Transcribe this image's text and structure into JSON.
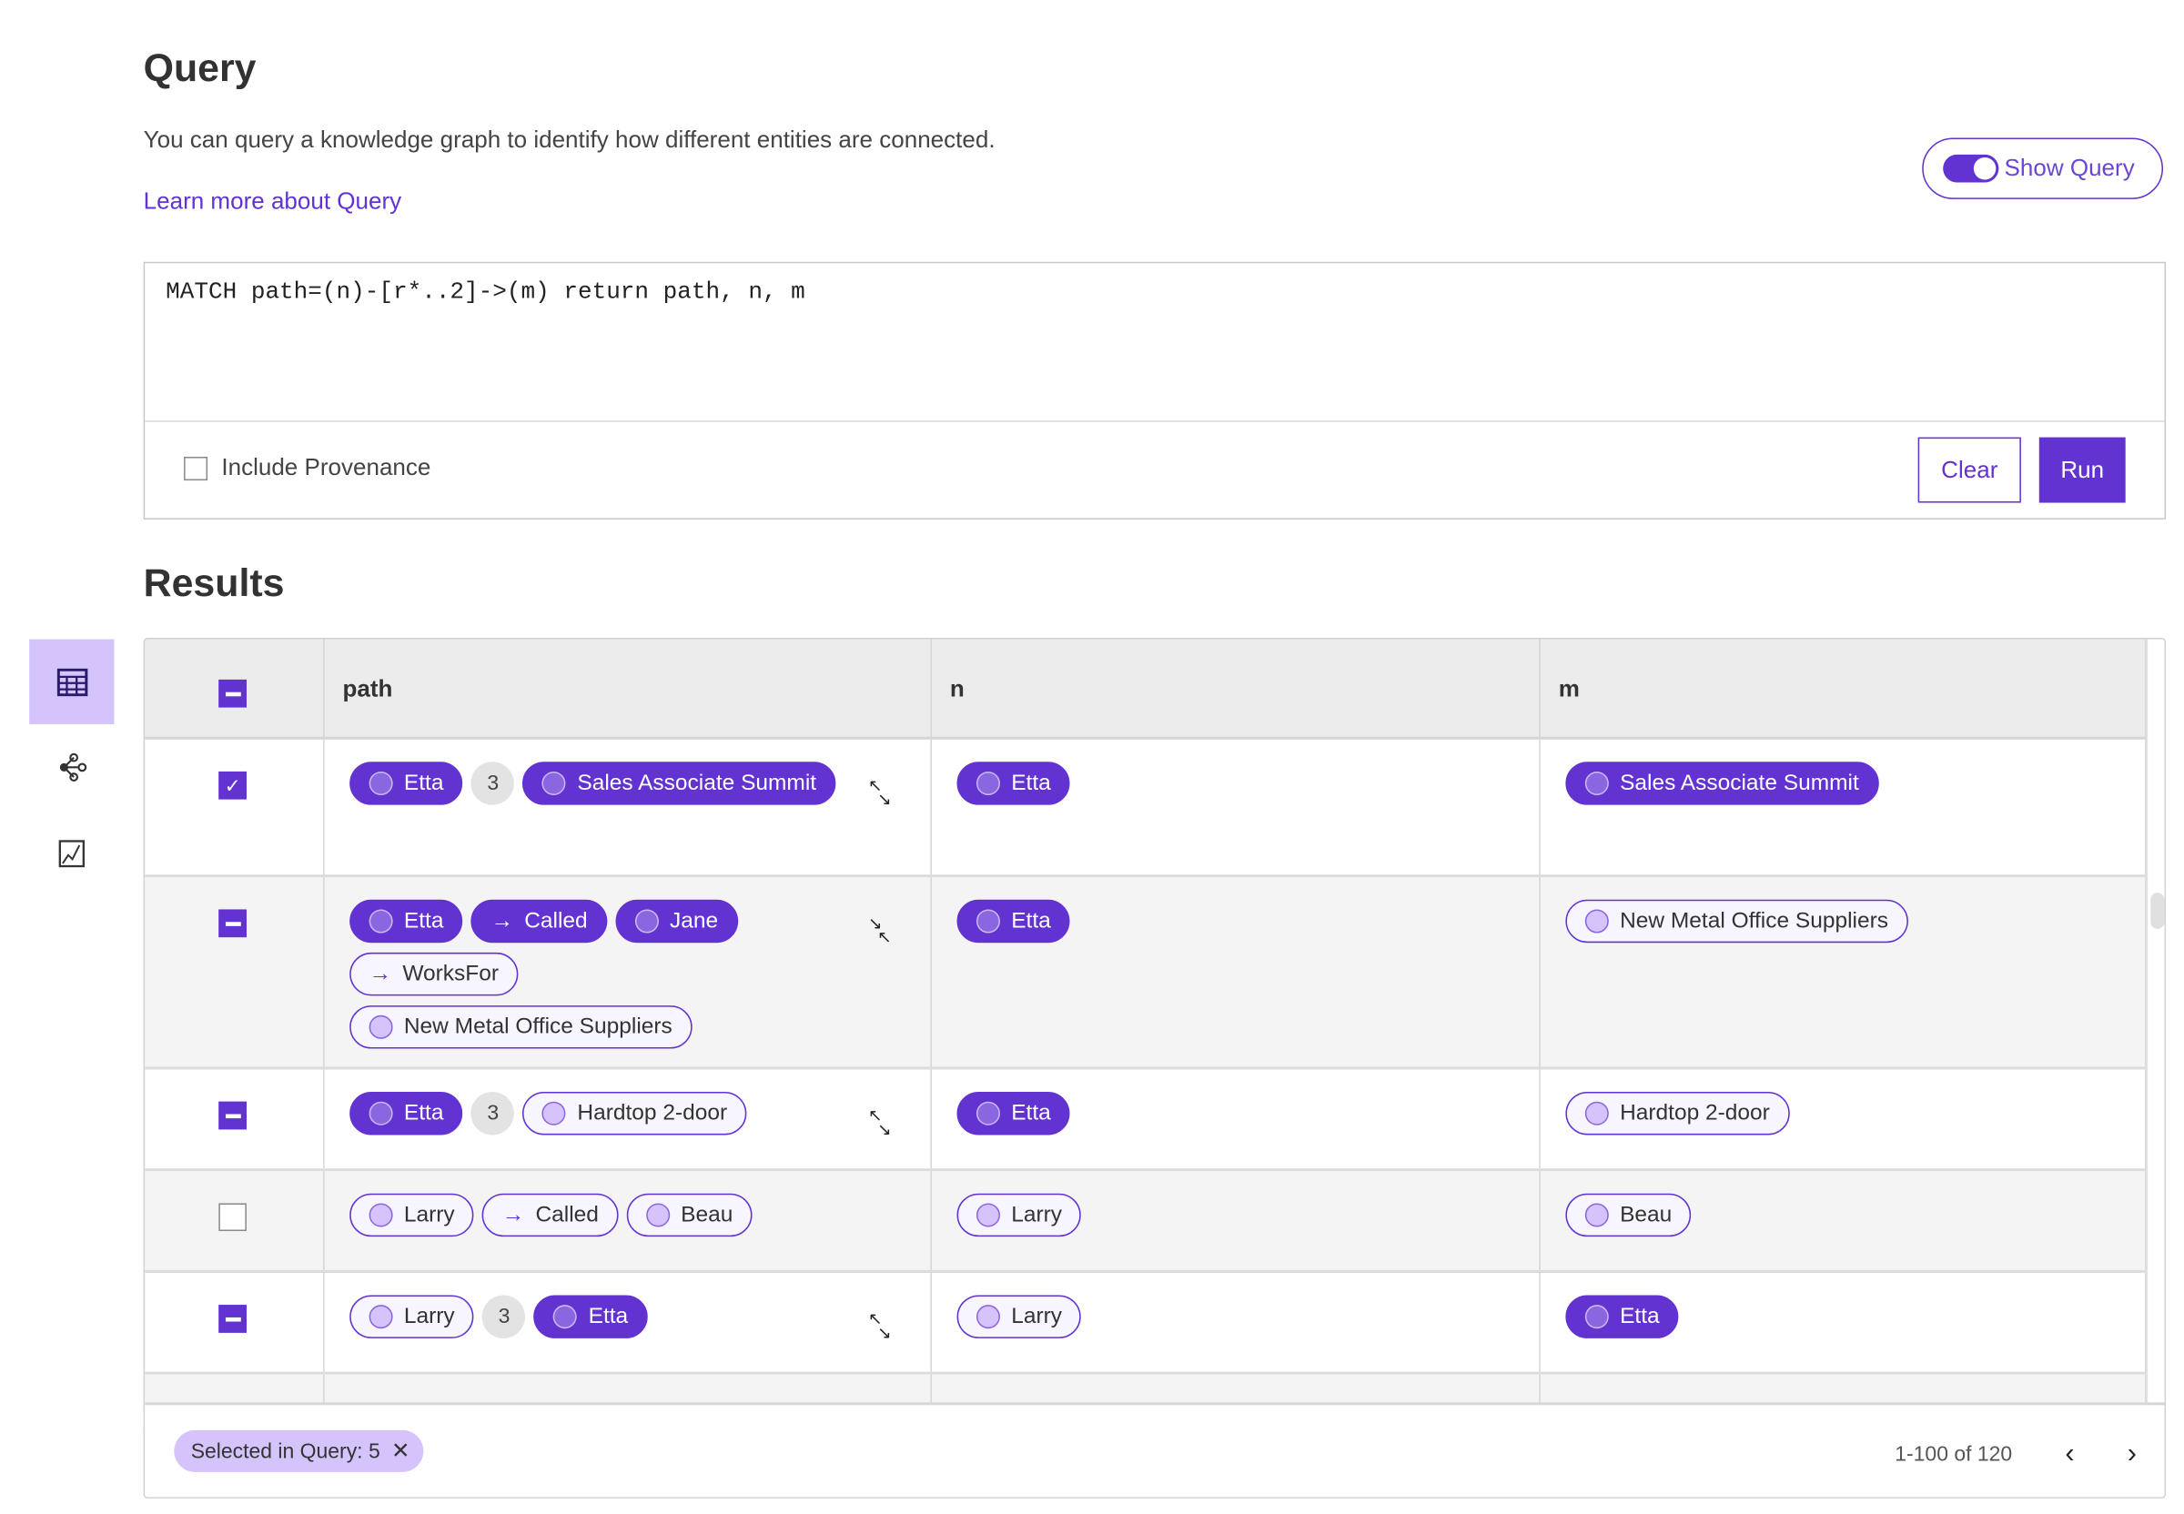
{
  "header": {
    "title": "Query",
    "description": "You can query a knowledge graph to identify how different entities are connected.",
    "learn_more": "Learn more about Query",
    "show_query_label": "Show Query",
    "show_query_on": true
  },
  "query": {
    "text": "MATCH path=(n)-[r*..2]->(m) return path, n, m",
    "include_provenance_label": "Include Provenance",
    "include_provenance": false,
    "clear_label": "Clear",
    "run_label": "Run"
  },
  "results": {
    "title": "Results",
    "columns": [
      "path",
      "n",
      "m"
    ],
    "view_icons": [
      "table-icon",
      "graph-icon",
      "chart-icon"
    ],
    "rows": [
      {
        "check": "checked",
        "path": [
          {
            "t": "node",
            "label": "Etta",
            "style": "solid"
          },
          {
            "t": "count",
            "label": "3"
          },
          {
            "t": "node",
            "label": "Sales Associate Summit",
            "style": "solid"
          }
        ],
        "expand": "expand-icon",
        "n": {
          "label": "Etta",
          "style": "solid"
        },
        "m": {
          "label": "Sales Associate Summit",
          "style": "solid"
        }
      },
      {
        "check": "indeterminate",
        "path": [
          {
            "t": "node",
            "label": "Etta",
            "style": "solid"
          },
          {
            "t": "edge",
            "label": "Called",
            "style": "solid"
          },
          {
            "t": "node",
            "label": "Jane",
            "style": "solid"
          },
          {
            "t": "edge",
            "label": "WorksFor",
            "style": "outline"
          },
          {
            "t": "node",
            "label": "New Metal Office Suppliers",
            "style": "outline"
          }
        ],
        "expand": "collapse-icon",
        "n": {
          "label": "Etta",
          "style": "solid"
        },
        "m": {
          "label": "New Metal Office Suppliers",
          "style": "outline"
        }
      },
      {
        "check": "indeterminate",
        "path": [
          {
            "t": "node",
            "label": "Etta",
            "style": "solid"
          },
          {
            "t": "count",
            "label": "3"
          },
          {
            "t": "node",
            "label": "Hardtop 2-door",
            "style": "outline"
          }
        ],
        "expand": "expand-icon",
        "n": {
          "label": "Etta",
          "style": "solid"
        },
        "m": {
          "label": "Hardtop 2-door",
          "style": "outline"
        }
      },
      {
        "check": "unchecked",
        "path": [
          {
            "t": "node",
            "label": "Larry",
            "style": "outline"
          },
          {
            "t": "edge",
            "label": "Called",
            "style": "outline"
          },
          {
            "t": "node",
            "label": "Beau",
            "style": "outline"
          }
        ],
        "expand": null,
        "n": {
          "label": "Larry",
          "style": "outline"
        },
        "m": {
          "label": "Beau",
          "style": "outline"
        }
      },
      {
        "check": "indeterminate",
        "path": [
          {
            "t": "node",
            "label": "Larry",
            "style": "outline"
          },
          {
            "t": "count",
            "label": "3"
          },
          {
            "t": "node",
            "label": "Etta",
            "style": "solid"
          }
        ],
        "expand": "expand-icon",
        "n": {
          "label": "Larry",
          "style": "outline"
        },
        "m": {
          "label": "Etta",
          "style": "solid"
        }
      }
    ],
    "selected_chip": "Selected in Query: 5",
    "pagination": "1-100 of 120"
  },
  "colors": {
    "accent": "#6233d1",
    "accent_light": "#d4c4fb"
  }
}
